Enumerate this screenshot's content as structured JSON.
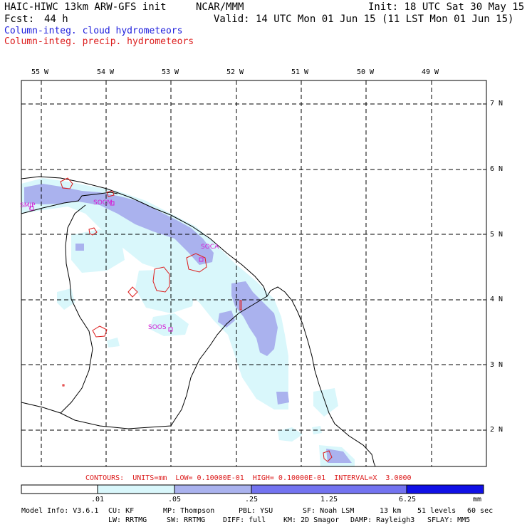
{
  "header": {
    "model": "HAIC-HIWC 13km ARW-GFS init",
    "org": "NCAR/MMM",
    "init": "Init: 18 UTC Sat 30 May 15",
    "fcst_label": "Fcst:",
    "fcst_value": "44 h",
    "valid": "Valid: 14 UTC Mon 01 Jun 15 (11 LST Mon 01 Jun 15)",
    "line_blue": "Column-integ. cloud hydrometeors",
    "line_red": "Column-integ. precip. hydrometeors"
  },
  "map": {
    "lon_labels": [
      "55 W",
      "54 W",
      "53 W",
      "52 W",
      "51 W",
      "50 W",
      "49 W"
    ],
    "lat_labels": [
      "7 N",
      "6 N",
      "5 N",
      "4 N",
      "3 N",
      "2 N"
    ],
    "stations": [
      "SMJP",
      "SOCM",
      "SOCA",
      "SOOS"
    ]
  },
  "contours_text": "CONTOURS:  UNITS=mm  LOW= 0.10000E-01  HIGH= 0.10000E-01  INTERVAL=X  3.0000",
  "colorbar": {
    "tick_labels": [
      ".01",
      ".05",
      ".25",
      "1.25",
      "6.25"
    ],
    "unit": "mm",
    "colors": [
      "#ffffff",
      "#d9f7fb",
      "#aab2ee",
      "#7373f0",
      "#1010e6"
    ]
  },
  "footer": {
    "line1": [
      "Model Info: V3.6.1",
      "CU: KF",
      "MP: Thompson",
      "PBL: YSU",
      "SF: Noah LSM",
      "13 km",
      "51 levels",
      "60 sec"
    ],
    "line2": [
      "LW: RRTMG",
      "SW: RRTMG",
      "DIFF: full",
      "KM: 2D Smagor",
      "DAMP: Rayleigh3",
      "SFLAY: MM5"
    ]
  }
}
